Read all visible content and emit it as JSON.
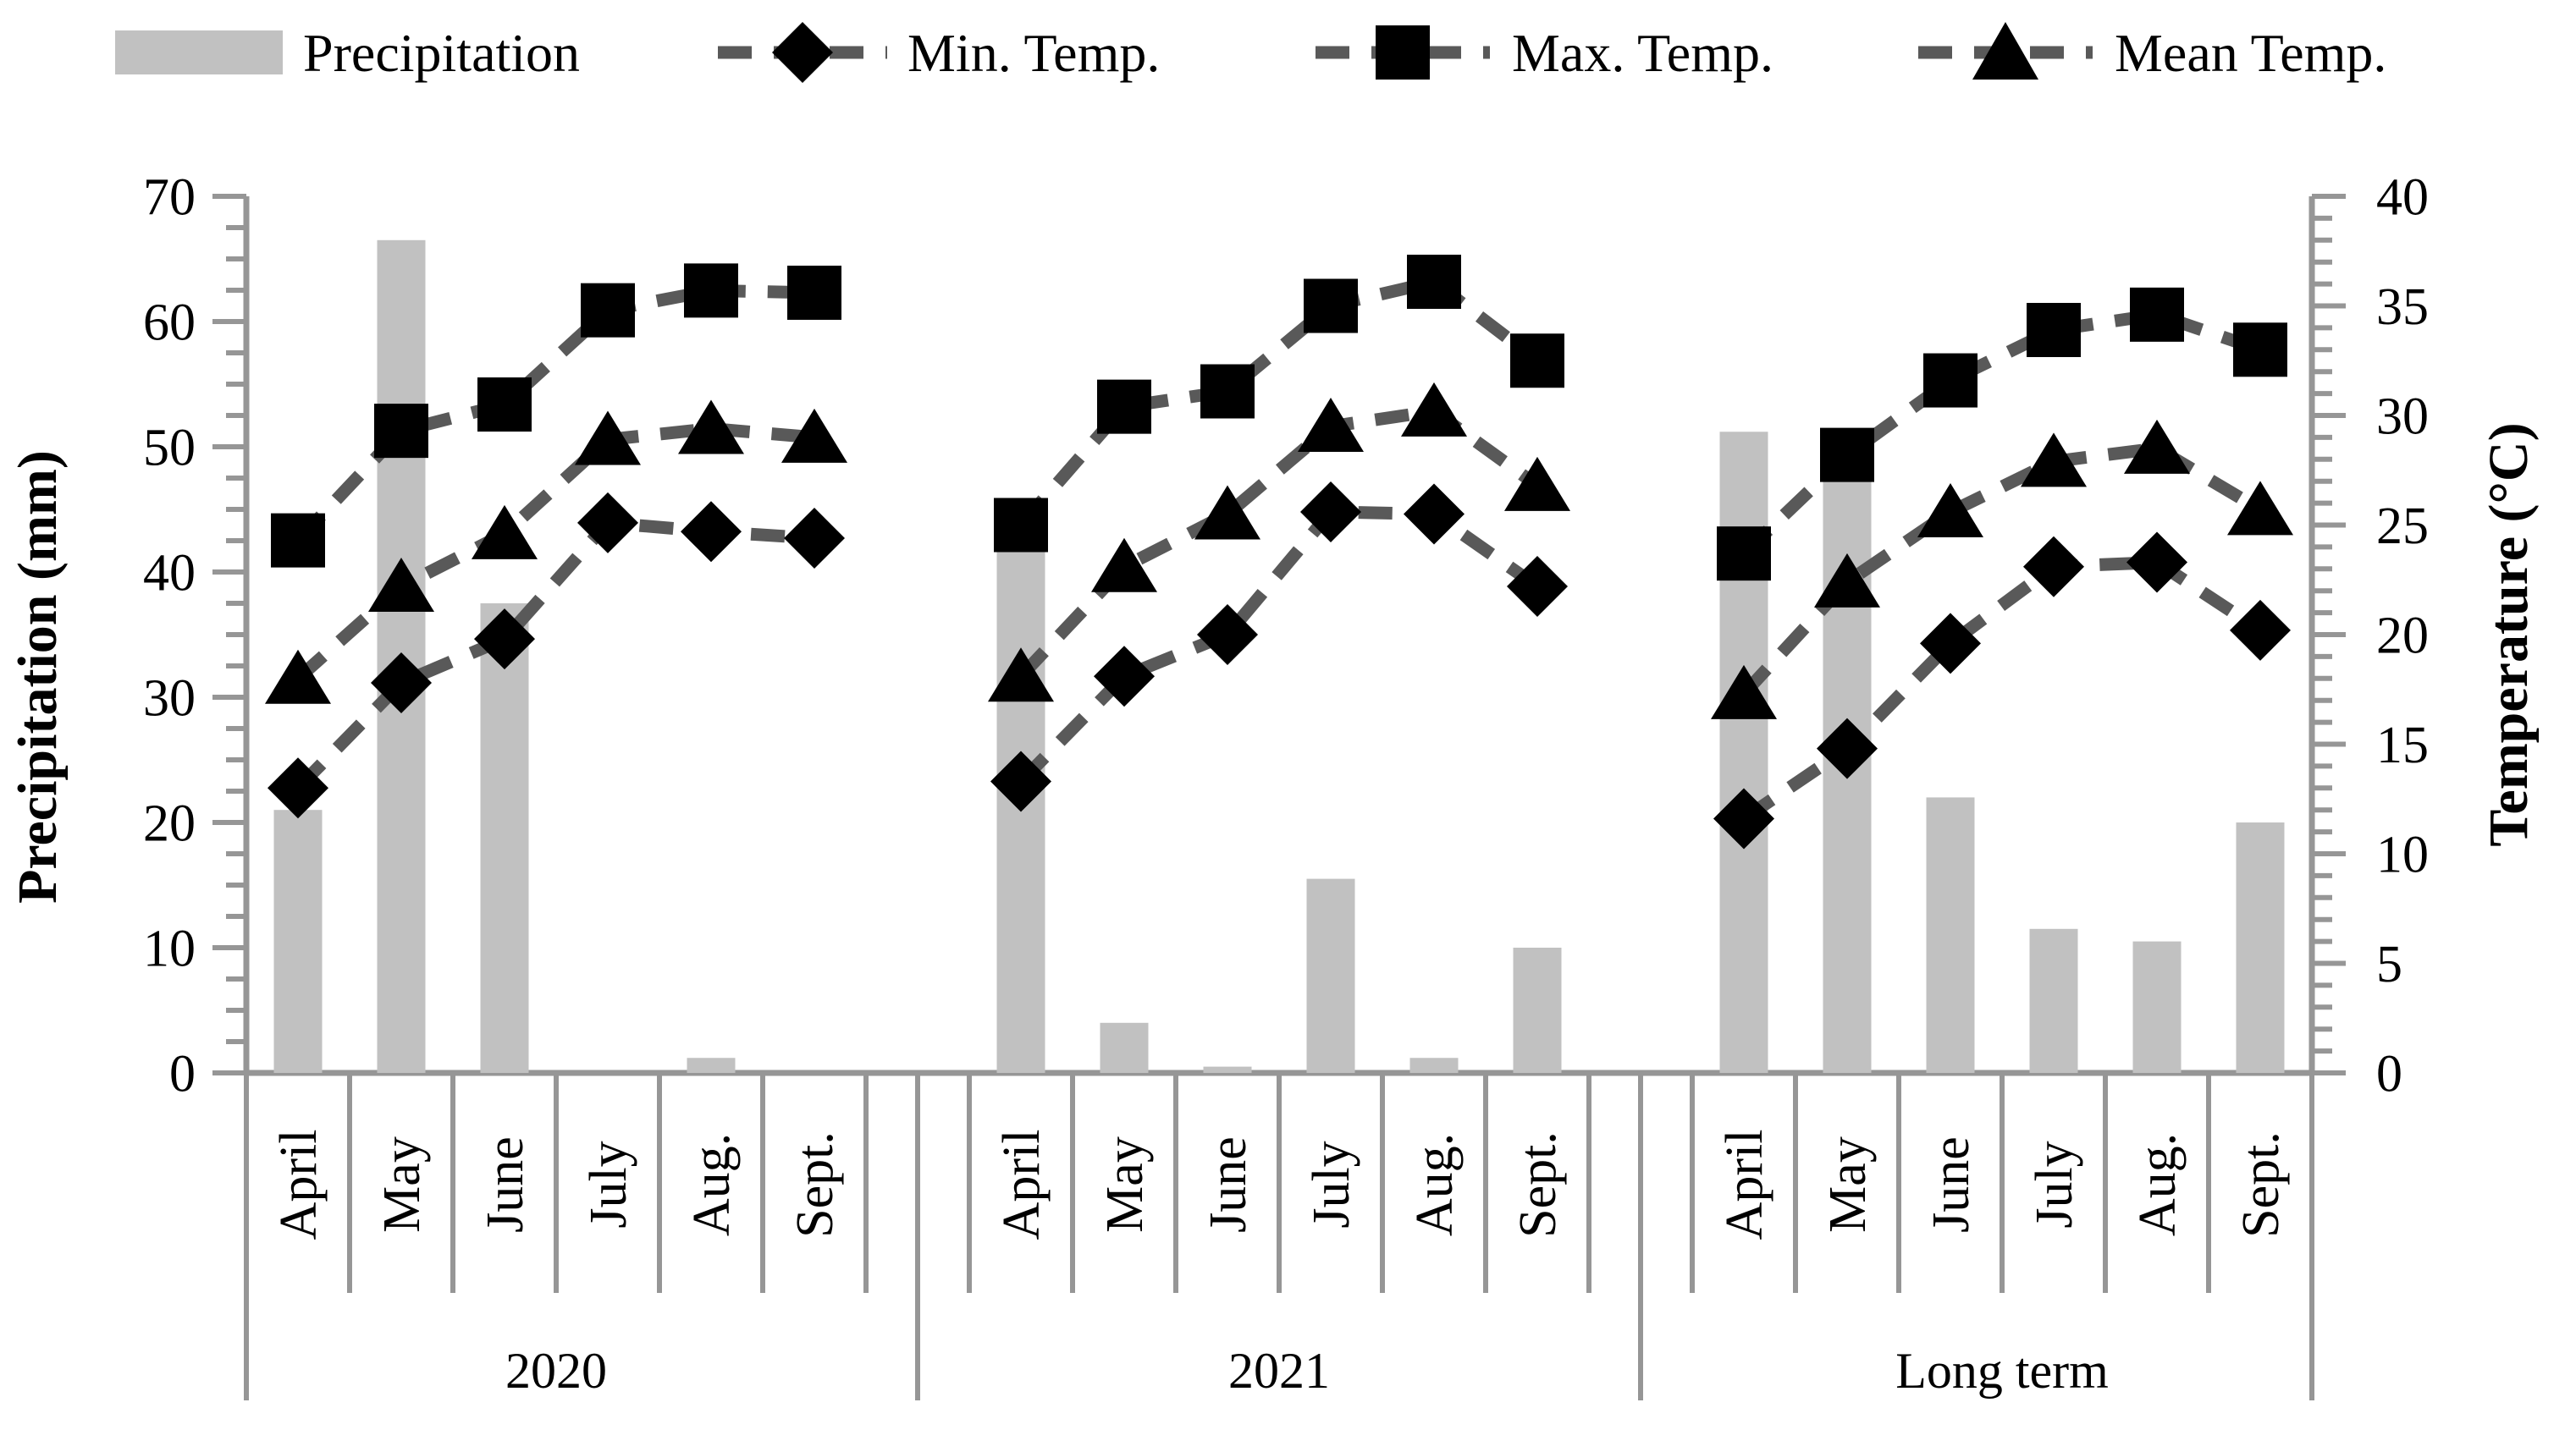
{
  "chart_data": {
    "type": "bar+line combo",
    "title": "",
    "categories_per_group": [
      "April",
      "May",
      "June",
      "July",
      "Aug.",
      "Sept."
    ],
    "groups": [
      "2020",
      "2021",
      "Long term"
    ],
    "left_axis": {
      "title": "Precipitation (mm)",
      "min": 0,
      "max": 70,
      "major_step": 10,
      "minor_step": 2.5,
      "tick_labels": [
        "0",
        "10",
        "20",
        "30",
        "40",
        "50",
        "60",
        "70"
      ]
    },
    "right_axis": {
      "title": "Temperature (°C)",
      "min": 0,
      "max": 40,
      "major_step": 5,
      "minor_step": 1,
      "tick_labels": [
        "0",
        "5",
        "10",
        "15",
        "20",
        "25",
        "30",
        "35",
        "40"
      ]
    },
    "grid": "off",
    "legend_position": "top",
    "series": [
      {
        "name": "Precipitation",
        "type": "bar",
        "axis": "left",
        "unit": "mm",
        "color": "#c1c1c1",
        "marker": "none",
        "values": {
          "2020": [
            21.0,
            66.5,
            37.5,
            0,
            1.2,
            0
          ],
          "2021": [
            42.0,
            4.0,
            0.5,
            15.5,
            1.2,
            10.0
          ],
          "Long term": [
            51.2,
            47.5,
            22.0,
            11.5,
            10.5,
            20.0
          ]
        }
      },
      {
        "name": "Min. Temp.",
        "type": "line",
        "axis": "right",
        "unit": "°C",
        "line_color": "#595959",
        "line_style": "dashed",
        "marker": "diamond",
        "marker_color": "#000000",
        "values": {
          "2020": [
            13.0,
            17.8,
            19.8,
            25.1,
            24.7,
            24.4
          ],
          "2021": [
            13.3,
            18.1,
            20.0,
            25.6,
            25.5,
            22.2
          ],
          "Long term": [
            11.6,
            14.8,
            19.6,
            23.1,
            23.3,
            20.2
          ]
        }
      },
      {
        "name": "Max. Temp.",
        "type": "line",
        "axis": "right",
        "unit": "°C",
        "line_color": "#595959",
        "line_style": "dashed",
        "marker": "square",
        "marker_color": "#000000",
        "values": {
          "2020": [
            24.3,
            29.3,
            30.5,
            34.8,
            35.7,
            35.6
          ],
          "2021": [
            25.0,
            30.4,
            31.1,
            35.0,
            36.1,
            32.5
          ],
          "Long term": [
            23.7,
            28.2,
            31.6,
            33.9,
            34.6,
            33.0
          ]
        }
      },
      {
        "name": "Mean Temp.",
        "type": "line",
        "axis": "right",
        "unit": "°C",
        "line_color": "#595959",
        "line_style": "dashed",
        "marker": "triangle",
        "marker_color": "#000000",
        "values": {
          "2020": [
            18.0,
            22.2,
            24.6,
            28.9,
            29.4,
            29.0
          ],
          "2021": [
            18.1,
            23.1,
            25.5,
            29.5,
            30.2,
            26.8
          ],
          "Long term": [
            17.3,
            22.4,
            25.6,
            27.9,
            28.5,
            25.7
          ]
        }
      }
    ],
    "style": {
      "background": "#ffffff",
      "axis_color": "#969696",
      "text_color": "#000000",
      "bar_color": "#c1c1c1",
      "dash_color": "#595959",
      "marker_color": "#000000"
    }
  }
}
